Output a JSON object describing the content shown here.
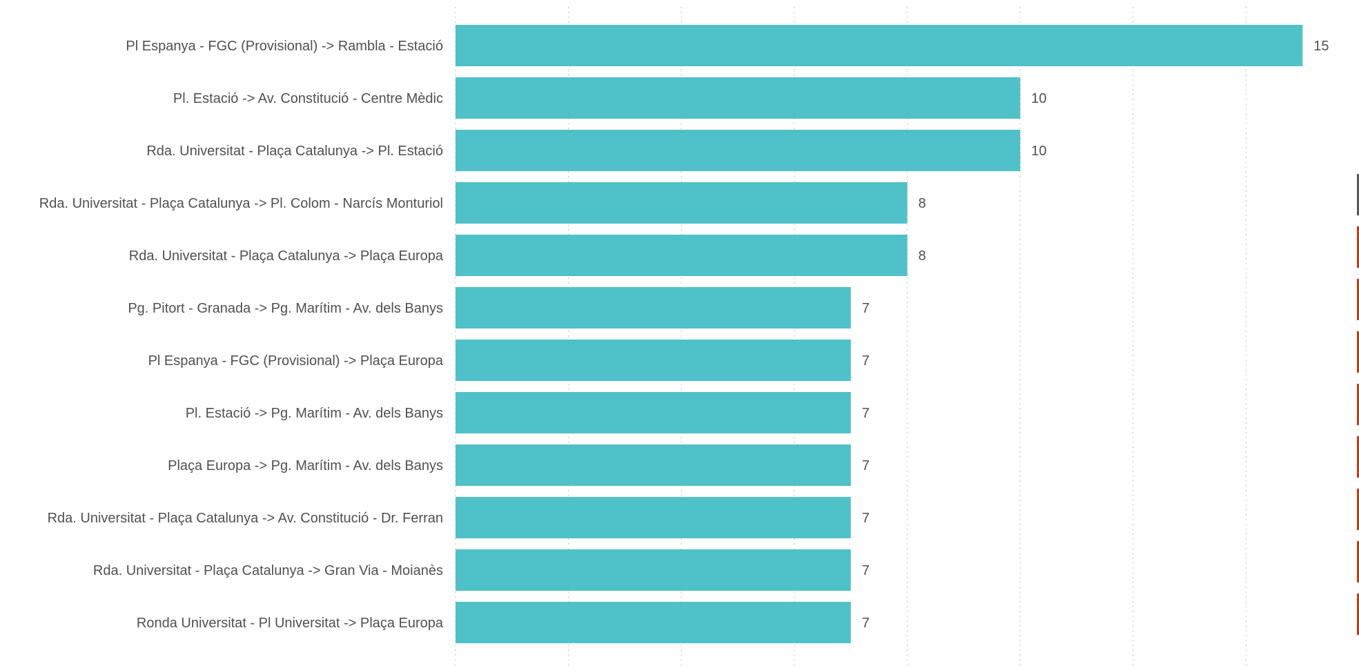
{
  "chart_data": {
    "type": "bar",
    "orientation": "horizontal",
    "categories": [
      "Pl Espanya - FGC (Provisional) -> Rambla - Estació",
      "Pl. Estació -> Av. Constitució - Centre Mèdic",
      "Rda. Universitat - Plaça Catalunya -> Pl. Estació",
      "Rda. Universitat - Plaça Catalunya -> Pl. Colom - Narcís Monturiol",
      "Rda. Universitat - Plaça Catalunya -> Plaça Europa",
      "Pg. Pitort - Granada -> Pg. Marítim - Av. dels Banys",
      "Pl Espanya - FGC (Provisional) -> Plaça Europa",
      "Pl. Estació -> Pg. Marítim - Av. dels Banys",
      "Plaça Europa -> Pg. Marítim - Av. dels Banys",
      "Rda. Universitat - Plaça Catalunya -> Av. Constitució - Dr. Ferran",
      "Rda. Universitat - Plaça Catalunya -> Gran Via - Moianès",
      "Ronda Universitat - Pl Universitat -> Plaça Europa"
    ],
    "values": [
      15,
      10,
      10,
      8,
      8,
      7,
      7,
      7,
      7,
      7,
      7,
      7
    ],
    "data_labels": [
      "15",
      "10",
      "10",
      "8",
      "8",
      "7",
      "7",
      "7",
      "7",
      "7",
      "7",
      "7"
    ],
    "xlim": [
      0,
      15.4
    ],
    "gridlines": [
      0,
      2,
      4,
      6,
      8,
      10,
      12,
      14
    ],
    "grid": true,
    "grid_style": "dotted-vertical",
    "title": "",
    "xlabel": "",
    "ylabel": "",
    "legend": "none",
    "bar_color": "#4fc1c8",
    "label_color": "#505050",
    "grid_color": "#c8c8c8"
  },
  "right_markers": [
    {
      "color": "#555555"
    },
    {
      "color": "#b5401f"
    },
    {
      "color": "#b5401f"
    },
    {
      "color": "#b5401f"
    },
    {
      "color": "#b5401f"
    },
    {
      "color": "#b5401f"
    },
    {
      "color": "#b5401f"
    },
    {
      "color": "#b5401f"
    },
    {
      "color": "#b5401f"
    }
  ]
}
